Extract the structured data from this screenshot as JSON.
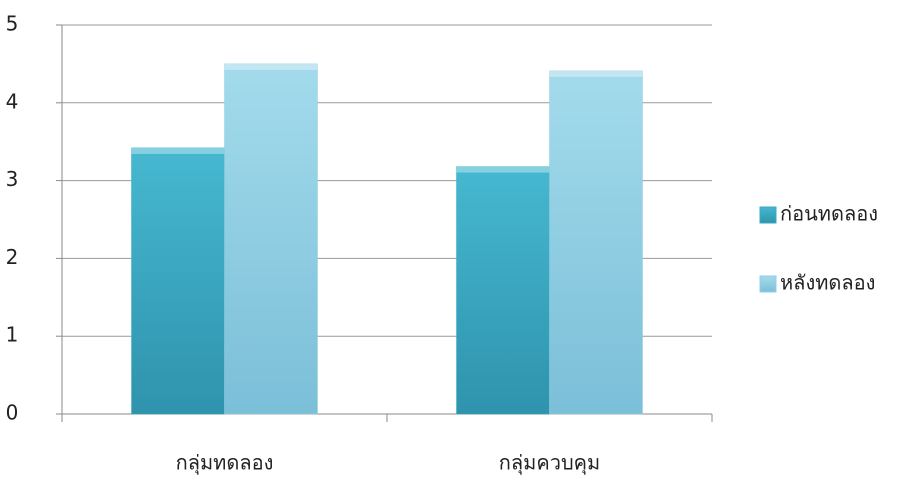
{
  "chart_data": {
    "type": "bar",
    "categories": [
      "กลุ่มทดลอง",
      "กลุ่มควบคุม"
    ],
    "series": [
      {
        "name": "ก่อนทดลอง",
        "color": "#3aa9c3",
        "values": [
          3.42,
          3.18
        ]
      },
      {
        "name": "หลังทดลอง",
        "color": "#8fcfe4",
        "values": [
          4.5,
          4.41
        ]
      }
    ],
    "ylim": [
      0,
      5
    ],
    "yticks": [
      0,
      1,
      2,
      3,
      4,
      5
    ],
    "grid": true,
    "legend": "right"
  }
}
